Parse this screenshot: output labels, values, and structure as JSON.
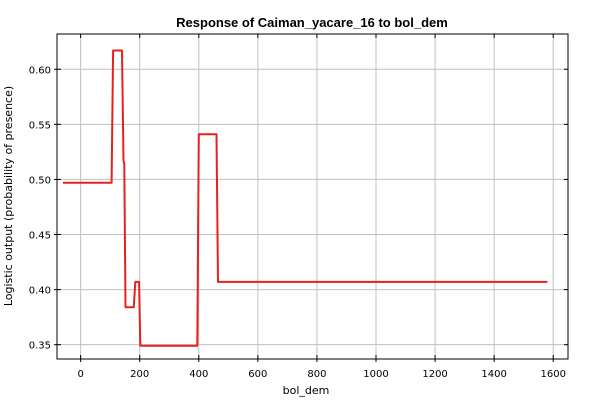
{
  "chart_data": {
    "type": "line",
    "title": "Response of Caiman_yacare_16 to bol_dem",
    "xlabel": "bol_dem",
    "ylabel": "Logistic output (probability of presence)",
    "xlim": [
      -80,
      1650
    ],
    "ylim": [
      0.337,
      0.632
    ],
    "xticks": [
      0,
      200,
      400,
      600,
      800,
      1000,
      1200,
      1400,
      1600
    ],
    "yticks": [
      0.35,
      0.4,
      0.45,
      0.5,
      0.55,
      0.6
    ],
    "xtick_labels": [
      "0",
      "200",
      "400",
      "600",
      "800",
      "1000",
      "1200",
      "1400",
      "1600"
    ],
    "ytick_labels": [
      "0.35",
      "0.40",
      "0.45",
      "0.50",
      "0.55",
      "0.60"
    ],
    "grid": true,
    "series": [
      {
        "color": "#e8201e",
        "x": [
          -60,
          105,
          110,
          140,
          145,
          148,
          152,
          155,
          160,
          180,
          185,
          198,
          202,
          215,
          390,
          395,
          400,
          460,
          465,
          1580
        ],
        "y": [
          0.497,
          0.497,
          0.617,
          0.617,
          0.517,
          0.514,
          0.384,
          0.384,
          0.384,
          0.384,
          0.407,
          0.407,
          0.349,
          0.349,
          0.349,
          0.349,
          0.541,
          0.541,
          0.407,
          0.407
        ]
      }
    ]
  }
}
